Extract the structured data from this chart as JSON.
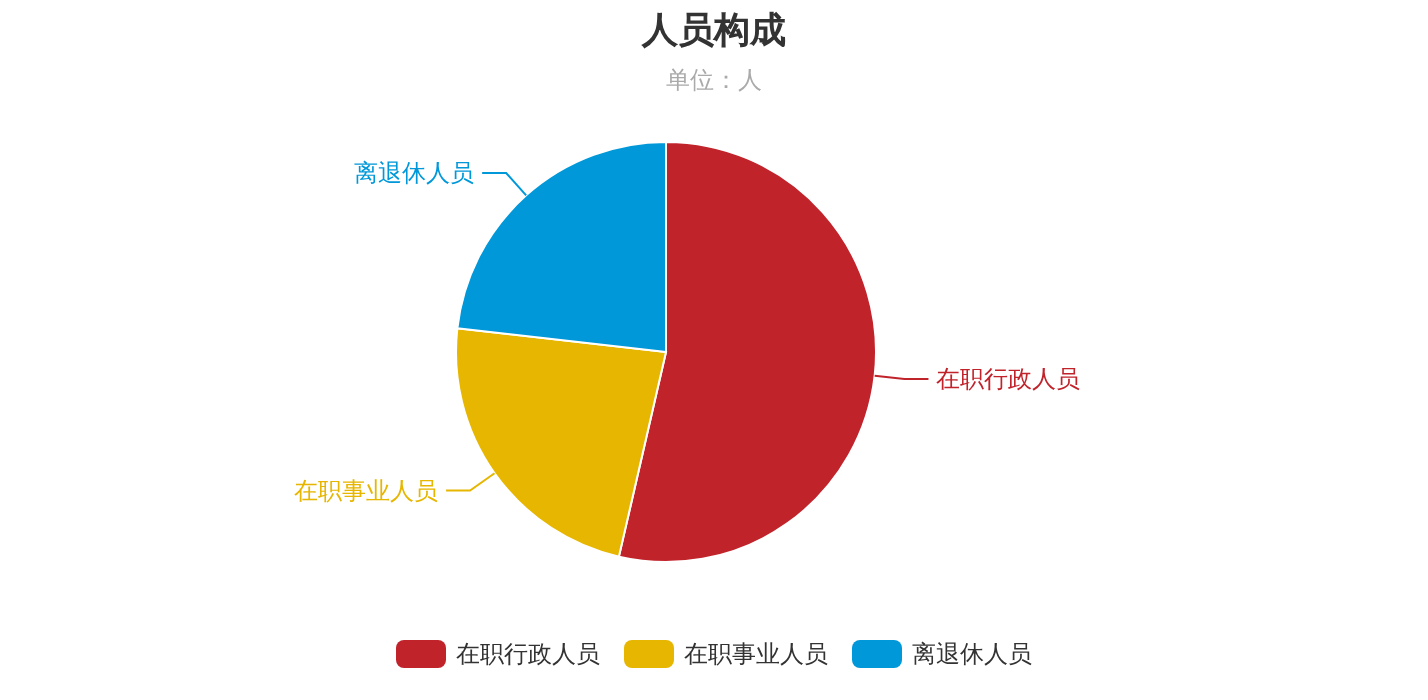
{
  "chart_data": {
    "type": "pie",
    "title": "人员构成",
    "subtitle": "单位：人",
    "categories": [
      "在职行政人员",
      "在职事业人员",
      "离退休人员"
    ],
    "values": [
      53.6,
      23.2,
      23.2
    ],
    "colors": [
      "#c1232b",
      "#e6b600",
      "#0098d9"
    ],
    "legend": "bottom"
  }
}
